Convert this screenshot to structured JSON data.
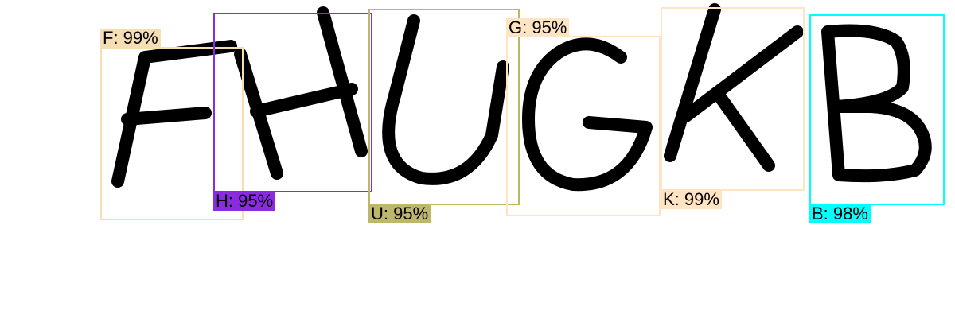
{
  "detections": [
    {
      "letter": "F",
      "label": "F: 99%",
      "color": "#f5deb3"
    },
    {
      "letter": "H",
      "label": "H: 95%",
      "color": "#8a2be2"
    },
    {
      "letter": "U",
      "label": "U: 95%",
      "color": "#bdb76b"
    },
    {
      "letter": "G",
      "label": "G: 95%",
      "color": "#ffe4c4"
    },
    {
      "letter": "K",
      "label": "K: 99%",
      "color": "#ffe4c4"
    },
    {
      "letter": "B",
      "label": "B: 98%",
      "color": "#00ffff"
    }
  ]
}
